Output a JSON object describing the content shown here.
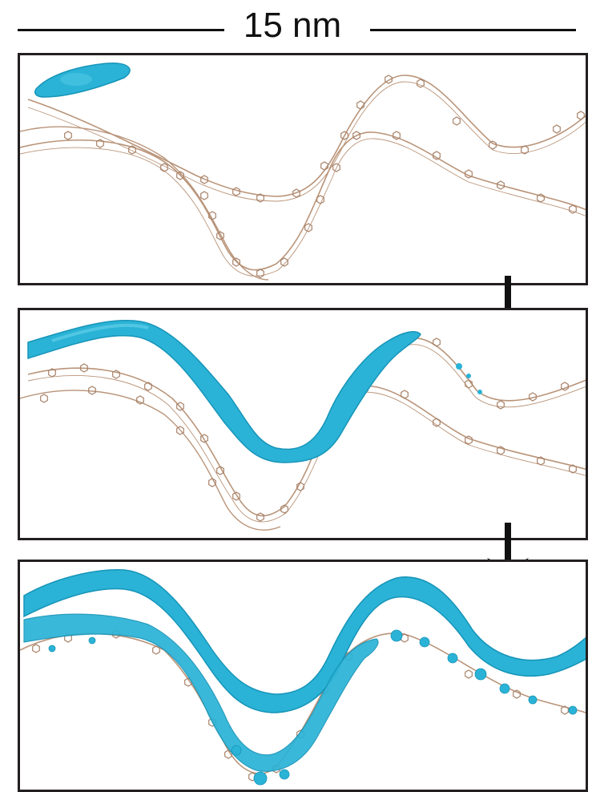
{
  "scale_bar": {
    "label": "15 nm"
  },
  "colors": {
    "fiber": "#b99479",
    "ring": "#a8836a",
    "water": "#2ab3d6",
    "water_edge": "#1794b8",
    "frame": "#231f20",
    "arrow": "#111111"
  },
  "panels": [
    {
      "id": "panel-1",
      "stage": 1
    },
    {
      "id": "panel-2",
      "stage": 2
    },
    {
      "id": "panel-3",
      "stage": 3
    }
  ]
}
